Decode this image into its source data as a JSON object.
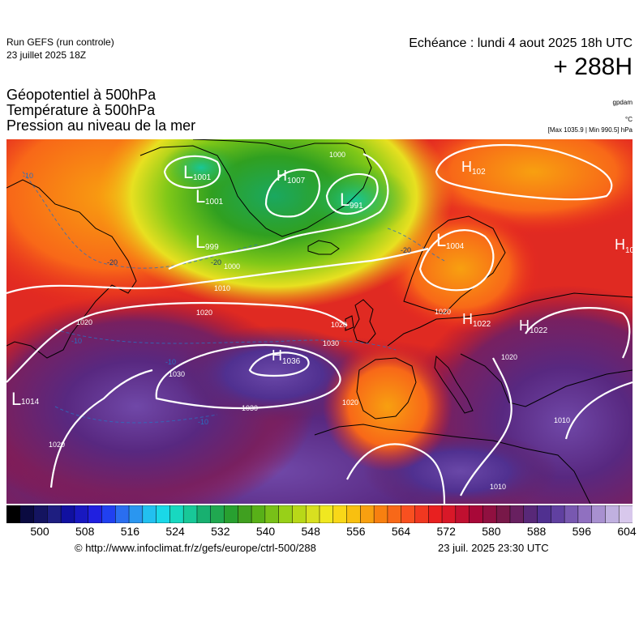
{
  "header": {
    "run_title": "Run GEFS (run controle)",
    "run_date": "23 juillet 2025 18Z",
    "echeance": "Echéance : lundi 4 aout 2025 18h UTC",
    "lead_time": "+ 288H"
  },
  "parameters": [
    "Géopotentiel à 500hPa",
    "Température à 500hPa",
    "Pression au niveau de la mer"
  ],
  "units": {
    "gpdam": "gpdam",
    "temperature": "°C",
    "pressure_extrema": "[Max 1035.9 | Min 990.5] hPa"
  },
  "colorbar": {
    "ticks": [
      "500",
      "508",
      "516",
      "524",
      "532",
      "540",
      "548",
      "556",
      "564",
      "572",
      "580",
      "588",
      "596",
      "604"
    ],
    "colors": [
      "#000000",
      "#0a0a40",
      "#141460",
      "#1e1e80",
      "#1010a0",
      "#1818c0",
      "#2020e0",
      "#2040f0",
      "#2a6ef0",
      "#2a96f0",
      "#22c0f0",
      "#1ad8e8",
      "#18d8c0",
      "#18c898",
      "#18b070",
      "#20a850",
      "#28a030",
      "#40a020",
      "#58b018",
      "#78c018",
      "#98d018",
      "#b8d818",
      "#d8e020",
      "#f0e820",
      "#f8d818",
      "#f8c010",
      "#f8a010",
      "#f88010",
      "#f86818",
      "#f85020",
      "#f03820",
      "#e82020",
      "#d81828",
      "#c01030",
      "#a80838",
      "#901040",
      "#781848",
      "#682060",
      "#582878",
      "#503090",
      "#6040a0",
      "#7858b0",
      "#9070c0",
      "#a890d0",
      "#c0b0e0",
      "#d8c8ec"
    ]
  },
  "map": {
    "pressure_centers": [
      {
        "type": "L",
        "value": "1001"
      },
      {
        "type": "L",
        "value": "1001"
      },
      {
        "type": "H",
        "value": "1007"
      },
      {
        "type": "L",
        "value": "991"
      },
      {
        "type": "L",
        "value": "999"
      },
      {
        "type": "H",
        "value": "102"
      },
      {
        "type": "L",
        "value": "1004"
      },
      {
        "type": "H",
        "value": "10"
      },
      {
        "type": "H",
        "value": "1022"
      },
      {
        "type": "H",
        "value": "1022"
      },
      {
        "type": "H",
        "value": "1036"
      },
      {
        "type": "L",
        "value": "1014"
      }
    ],
    "isobar_labels": [
      "1000",
      "1000",
      "1010",
      "1020",
      "1020",
      "1020",
      "1020",
      "1030",
      "1030",
      "1030",
      "1020",
      "1020",
      "1010",
      "1010",
      "1020"
    ],
    "isotherm_labels": [
      "-10",
      "-20",
      "-20",
      "-20",
      "-10",
      "-10",
      "-10"
    ]
  },
  "footer": {
    "credit_url": "© http://www.infoclimat.fr/z/gefs/europe/ctrl-500/288",
    "credit_date": "23 juil. 2025 23:30 UTC"
  }
}
